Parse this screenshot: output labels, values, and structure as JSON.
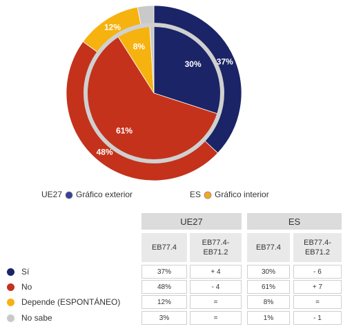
{
  "chart_data": {
    "type": "nested-pie",
    "categories": [
      "Sí",
      "No",
      "Depende (ESPONTÁNEO)",
      "No sabe"
    ],
    "colors": [
      "#1b2466",
      "#c4321c",
      "#f6b20f",
      "#c9c9c9"
    ],
    "series": [
      {
        "name": "UE27",
        "legend_label": "Gráfico exterior",
        "ring": "outer",
        "color": "#3a3f9a",
        "values": [
          37,
          48,
          12,
          3
        ],
        "value_labels": [
          "37%",
          "48%",
          "12%",
          null
        ]
      },
      {
        "name": "ES",
        "legend_label": "Gráfico interior",
        "ring": "inner",
        "color": "#f5a623",
        "values": [
          30,
          61,
          8,
          1
        ],
        "value_labels": [
          "30%",
          "61%",
          "8%",
          null
        ]
      }
    ]
  },
  "table": {
    "groups": [
      "UE27",
      "ES"
    ],
    "columns": [
      "EB77.4",
      "EB77.4-EB71.2",
      "EB77.4",
      "EB77.4-EB71.2"
    ],
    "rows": [
      [
        "37%",
        "+ 4",
        "30%",
        "- 6"
      ],
      [
        "48%",
        "- 4",
        "61%",
        "+ 7"
      ],
      [
        "12%",
        "=",
        "8%",
        "="
      ],
      [
        "3%",
        "=",
        "1%",
        "- 1"
      ]
    ]
  }
}
